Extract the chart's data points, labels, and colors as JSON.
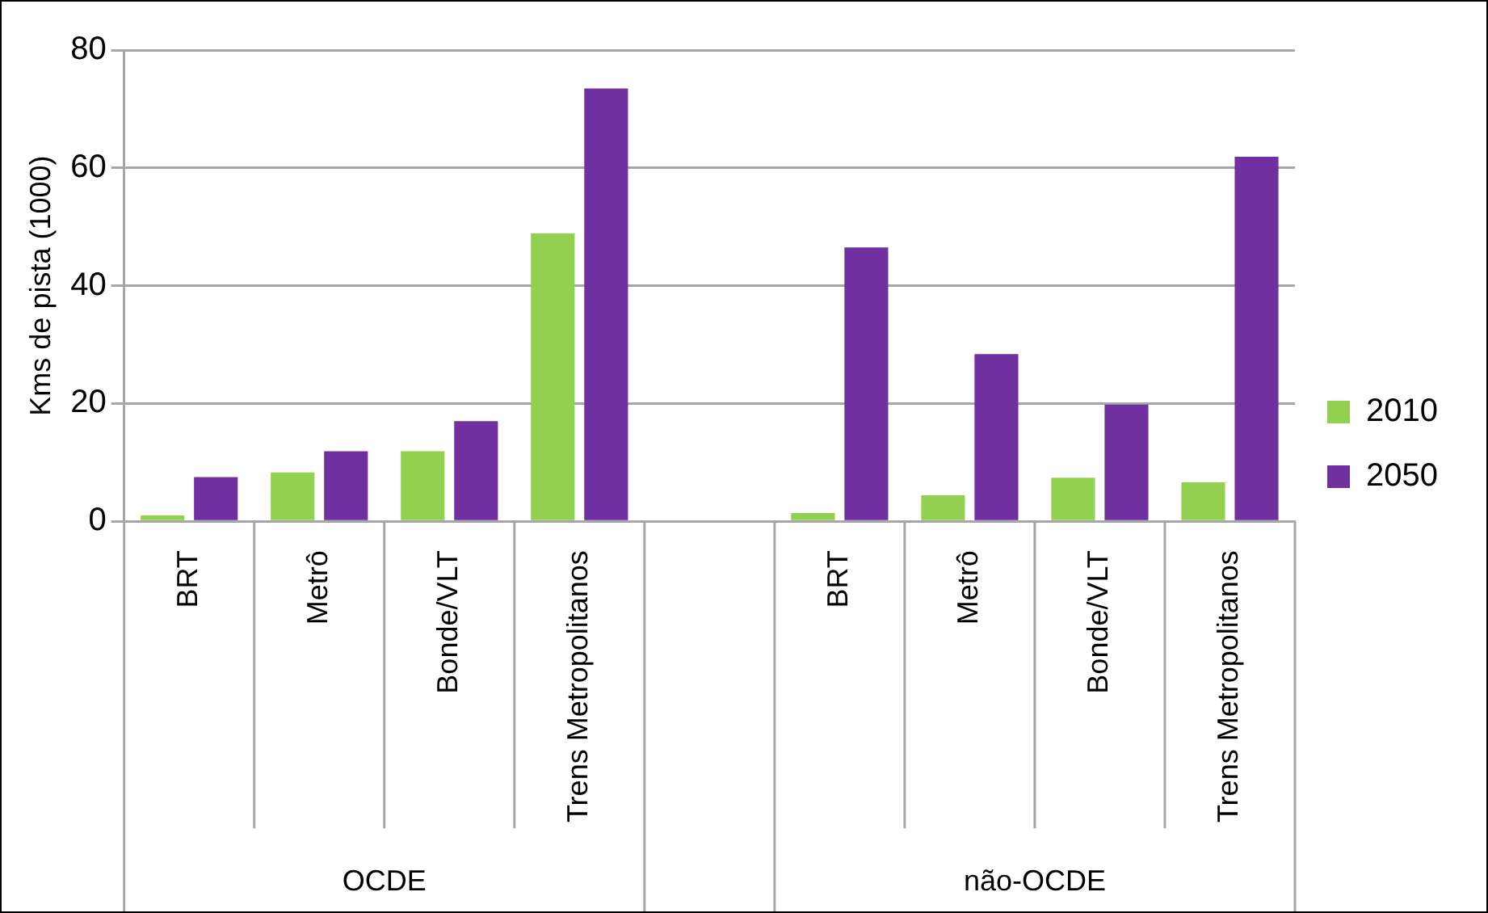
{
  "chart_data": {
    "type": "bar",
    "ylabel": "Kms de pista (1000)",
    "categories": [
      "BRT",
      "Metrô",
      "Bonde/VLT",
      "Trens Metropolitanos",
      null,
      "BRT",
      "Metrô",
      "Bonde/VLT",
      "Trens Metropolitanos"
    ],
    "series": [
      {
        "name": "2010",
        "color": "#92d050",
        "values": [
          1,
          8.3,
          11.9,
          48.9,
          null,
          1.4,
          4.4,
          7.4,
          6.6
        ]
      },
      {
        "name": "2050",
        "color": "#7030a0",
        "values": [
          7.5,
          11.9,
          17,
          73.5,
          null,
          46.5,
          28.4,
          19.8,
          61.9
        ]
      }
    ],
    "annotations": [
      "OCDE",
      "não-OCDE"
    ],
    "ylim": [
      0,
      80
    ],
    "yticks": [
      0,
      20,
      40,
      60,
      80
    ],
    "grid": "y",
    "legend": "right"
  }
}
